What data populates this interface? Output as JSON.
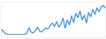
{
  "chart_data": {
    "type": "line",
    "color": "#3a8fd8",
    "tick_labels": false,
    "grid": false,
    "values": [
      10,
      8,
      5,
      4,
      4,
      4,
      4,
      4,
      4,
      4,
      4,
      4,
      6,
      12,
      7,
      6,
      9,
      13,
      8,
      7,
      10,
      12,
      11,
      15,
      18,
      14,
      20,
      13,
      17,
      24,
      12,
      22,
      16,
      27,
      19,
      30,
      25,
      33,
      22,
      28,
      18,
      31,
      26,
      35,
      29,
      37,
      32,
      38,
      40,
      36
    ],
    "xlim": [
      0,
      49
    ],
    "ylim": [
      0,
      44
    ]
  }
}
